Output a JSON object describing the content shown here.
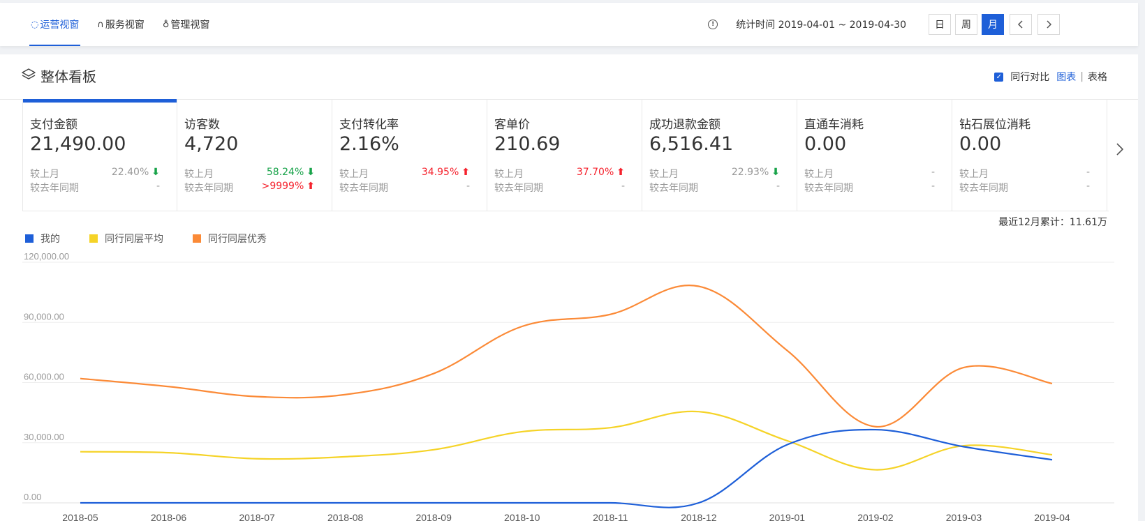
{
  "nav": {
    "tabs": [
      {
        "label": "运营视窗",
        "icon": "spinner-icon",
        "active": true
      },
      {
        "label": "服务视窗",
        "icon": "headset-icon",
        "active": false
      },
      {
        "label": "管理视窗",
        "icon": "award-icon",
        "active": false
      }
    ],
    "stat_time": "统计时间 2019-04-01 ~ 2019-04-30",
    "periods": [
      {
        "label": "日",
        "active": false
      },
      {
        "label": "周",
        "active": false
      },
      {
        "label": "月",
        "active": true
      }
    ]
  },
  "board": {
    "title": "整体看板",
    "compare_label": "同行对比",
    "chart_link": "图表",
    "separator": "|",
    "table_link": "表格"
  },
  "metrics": [
    {
      "name": "支付金额",
      "value": "21,490.00",
      "mom_label": "较上月",
      "mom": "22.40%",
      "mom_dir": "down",
      "mom_color": "gray",
      "yoy_label": "较去年同期",
      "yoy": "-",
      "yoy_dir": "",
      "active": true
    },
    {
      "name": "访客数",
      "value": "4,720",
      "mom_label": "较上月",
      "mom": "58.24%",
      "mom_dir": "down",
      "mom_color": "green",
      "yoy_label": "较去年同期",
      "yoy": ">9999%",
      "yoy_dir": "up",
      "active": false
    },
    {
      "name": "支付转化率",
      "value": "2.16%",
      "mom_label": "较上月",
      "mom": "34.95%",
      "mom_dir": "up",
      "mom_color": "red",
      "yoy_label": "较去年同期",
      "yoy": "-",
      "yoy_dir": "",
      "active": false
    },
    {
      "name": "客单价",
      "value": "210.69",
      "mom_label": "较上月",
      "mom": "37.70%",
      "mom_dir": "up",
      "mom_color": "red",
      "yoy_label": "较去年同期",
      "yoy": "-",
      "yoy_dir": "",
      "active": false
    },
    {
      "name": "成功退款金额",
      "value": "6,516.41",
      "mom_label": "较上月",
      "mom": "22.93%",
      "mom_dir": "down",
      "mom_color": "gray",
      "yoy_label": "较去年同期",
      "yoy": "-",
      "yoy_dir": "",
      "active": false
    },
    {
      "name": "直通车消耗",
      "value": "0.00",
      "mom_label": "较上月",
      "mom": "-",
      "mom_dir": "",
      "mom_color": "gray",
      "yoy_label": "较去年同期",
      "yoy": "-",
      "yoy_dir": "",
      "active": false
    },
    {
      "name": "钻石展位消耗",
      "value": "0.00",
      "mom_label": "较上月",
      "mom": "-",
      "mom_dir": "",
      "mom_color": "gray",
      "yoy_label": "较去年同期",
      "yoy": "-",
      "yoy_dir": "",
      "active": false
    }
  ],
  "cumulative": "最近12月累计：11.61万",
  "colors": {
    "accent": "#1e5fd8",
    "mine": "#1e5fd8",
    "avg": "#f5d327",
    "excellent": "#fb8a37"
  },
  "chart_data": {
    "type": "line",
    "x": [
      "2018-05",
      "2018-06",
      "2018-07",
      "2018-08",
      "2018-09",
      "2018-10",
      "2018-11",
      "2018-12",
      "2019-01",
      "2019-02",
      "2019-03",
      "2019-04"
    ],
    "yticks": [
      "0.00",
      "30,000.00",
      "60,000.00",
      "90,000.00",
      "120,000.00"
    ],
    "ylim": [
      0,
      120000
    ],
    "grid": true,
    "legend_position": "top-left",
    "series": [
      {
        "name": "我的",
        "color": "#1e5fd8",
        "values": [
          0,
          0,
          0,
          0,
          0,
          0,
          0,
          0,
          29000,
          36500,
          28000,
          21490
        ]
      },
      {
        "name": "同行同层平均",
        "color": "#f5d327",
        "values": [
          25500,
          25000,
          22000,
          23000,
          26500,
          35500,
          37500,
          45500,
          31000,
          16500,
          28500,
          24000
        ]
      },
      {
        "name": "同行同层优秀",
        "color": "#fb8a37",
        "values": [
          62000,
          58000,
          53000,
          54000,
          64500,
          88000,
          94000,
          108000,
          76000,
          38000,
          67500,
          59500
        ]
      }
    ]
  }
}
